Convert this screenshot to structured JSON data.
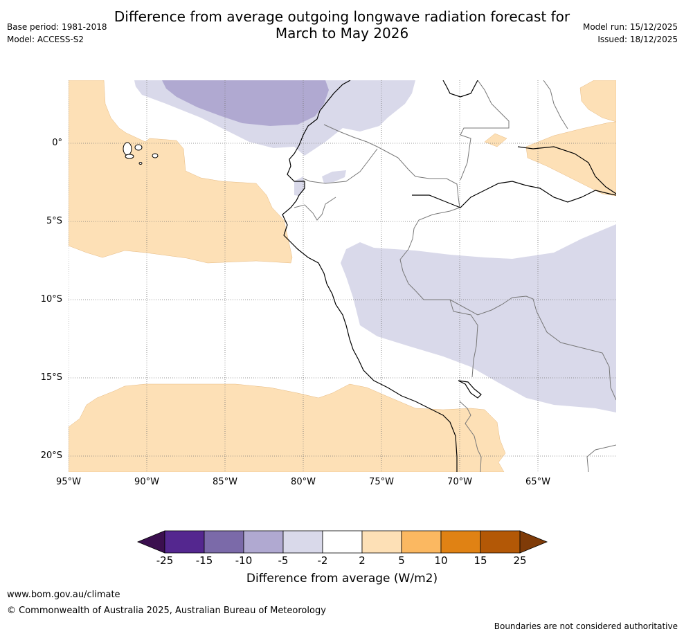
{
  "title": {
    "line1": "Difference from average outgoing longwave radiation forecast for",
    "line2": "March to May 2026"
  },
  "meta_left": {
    "base_period": "Base period: 1981-2018",
    "model": "Model: ACCESS-S2"
  },
  "meta_right": {
    "model_run": "Model run: 15/12/2025",
    "issued": "Issued: 18/12/2025"
  },
  "map": {
    "lat_labels": [
      "0°",
      "5°S",
      "10°S",
      "15°S",
      "20°S"
    ],
    "lon_labels": [
      "95°W",
      "90°W",
      "85°W",
      "80°W",
      "75°W",
      "70°W",
      "65°W"
    ],
    "lon_range": [
      -95,
      -60
    ],
    "lat_range": [
      -21,
      4
    ]
  },
  "colorbar": {
    "ticks": [
      "-25",
      "-15",
      "-10",
      "-5",
      "-2",
      "2",
      "5",
      "10",
      "15",
      "25"
    ],
    "colors": [
      "#3b0f4f",
      "#54278f",
      "#7b6aa9",
      "#b0a9d1",
      "#d9d9ea",
      "#ffffff",
      "#fde0b6",
      "#fbb861",
      "#e08214",
      "#b35806",
      "#7f3b08"
    ],
    "title": "Difference from average (W/m2)"
  },
  "footer": {
    "url": "www.bom.gov.au/climate",
    "copyright": "© Commonwealth of Australia 2025, Australian Bureau of Meteorology",
    "disclaimer": "Boundaries are not considered authoritative"
  }
}
